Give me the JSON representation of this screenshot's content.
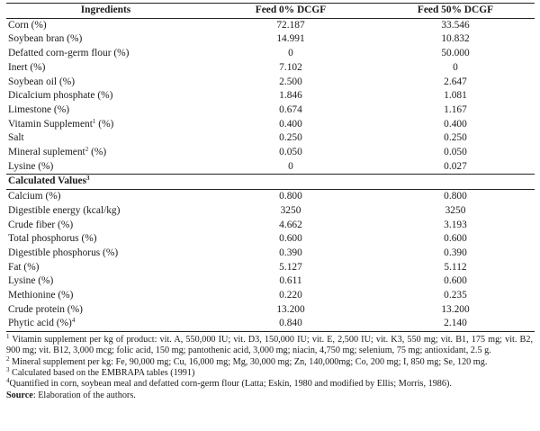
{
  "headers": [
    "Ingredients",
    "Feed 0% DCGF",
    "Feed 50% DCGF"
  ],
  "ingredients": [
    {
      "name": "Corn (%)",
      "sup": "",
      "after": "",
      "v0": "72.187",
      "v50": "33.546"
    },
    {
      "name": "Soybean bran (%)",
      "sup": "",
      "after": "",
      "v0": "14.991",
      "v50": "10.832"
    },
    {
      "name": "Defatted corn-germ flour (%)",
      "sup": "",
      "after": "",
      "v0": "0",
      "v50": "50.000"
    },
    {
      "name": "Inert (%)",
      "sup": "",
      "after": "",
      "v0": "7.102",
      "v50": "0"
    },
    {
      "name": "Soybean oil (%)",
      "sup": "",
      "after": "",
      "v0": "2.500",
      "v50": "2.647"
    },
    {
      "name": "Dicalcium phosphate (%)",
      "sup": "",
      "after": "",
      "v0": "1.846",
      "v50": "1.081"
    },
    {
      "name": "Limestone (%)",
      "sup": "",
      "after": "",
      "v0": "0.674",
      "v50": "1.167"
    },
    {
      "name": "Vitamin Supplement",
      "sup": "1",
      "after": " (%)",
      "v0": "0.400",
      "v50": "0.400"
    },
    {
      "name": "Salt",
      "sup": "",
      "after": "",
      "v0": "0.250",
      "v50": "0.250"
    },
    {
      "name": "Mineral suplement",
      "sup": "2",
      "after": " (%)",
      "v0": "0.050",
      "v50": "0.050"
    },
    {
      "name": "Lysine (%)",
      "sup": "",
      "after": "",
      "v0": "0",
      "v50": "0.027"
    }
  ],
  "calc_section": {
    "label": "Calculated Values",
    "sup": "3"
  },
  "calculated": [
    {
      "name": "Calcium (%)",
      "sup": "",
      "after": "",
      "v0": "0.800",
      "v50": "0.800"
    },
    {
      "name": "Digestible energy (kcal/kg)",
      "sup": "",
      "after": "",
      "v0": "3250",
      "v50": "3250"
    },
    {
      "name": "Crude fiber (%)",
      "sup": "",
      "after": "",
      "v0": "4.662",
      "v50": "3.193"
    },
    {
      "name": "Total phosphorus (%)",
      "sup": "",
      "after": "",
      "v0": "0.600",
      "v50": "0.600"
    },
    {
      "name": "Digestible phosphorus (%)",
      "sup": "",
      "after": "",
      "v0": "0.390",
      "v50": "0.390"
    },
    {
      "name": "Fat (%)",
      "sup": "",
      "after": "",
      "v0": "5.127",
      "v50": "5.112"
    },
    {
      "name": "Lysine (%)",
      "sup": "",
      "after": "",
      "v0": "0.611",
      "v50": "0.600"
    },
    {
      "name": "Methionine (%)",
      "sup": "",
      "after": "",
      "v0": "0.220",
      "v50": "0.235"
    },
    {
      "name": "Crude protein (%)",
      "sup": "",
      "after": "",
      "v0": "13.200",
      "v50": "13.200"
    },
    {
      "name": "Phytic acid (%)",
      "sup": "4",
      "after": "",
      "v0": "0.840",
      "v50": "2.140"
    }
  ],
  "footnotes": [
    {
      "sup": "1",
      "text": " Vitamin supplement per kg of product: vit. A, 550,000 IU; vit. D3, 150,000 IU; vit. E, 2,500 IU; vit. K3, 550 mg; vit. B1, 175 mg; vit. B2, 900 mg; vit. B12, 3,000 mcg; folic acid, 150 mg; pantothenic acid, 3,000 mg; niacin, 4,750 mg; selenium, 75 mg; antioxidant, 2.5 g."
    },
    {
      "sup": "2",
      "text": " Mineral supplement per kg: Fe, 90,000 mg; Cu, 16,000 mg; Mg, 30,000 mg; Zn, 140,000mg; Co, 200 mg; I, 850 mg; Se, 120 mg."
    },
    {
      "sup": "3",
      "text": " Calculated based on the EMBRAPA tables (1991)"
    },
    {
      "sup": "4",
      "text": "Quantified in corn, soybean meal and defatted corn-germ flour (Latta; Eskin, 1980 and modified by Ellis; Morris, 1986)."
    }
  ],
  "source": {
    "label": "Source",
    "text": ": Elaboration of the authors."
  }
}
